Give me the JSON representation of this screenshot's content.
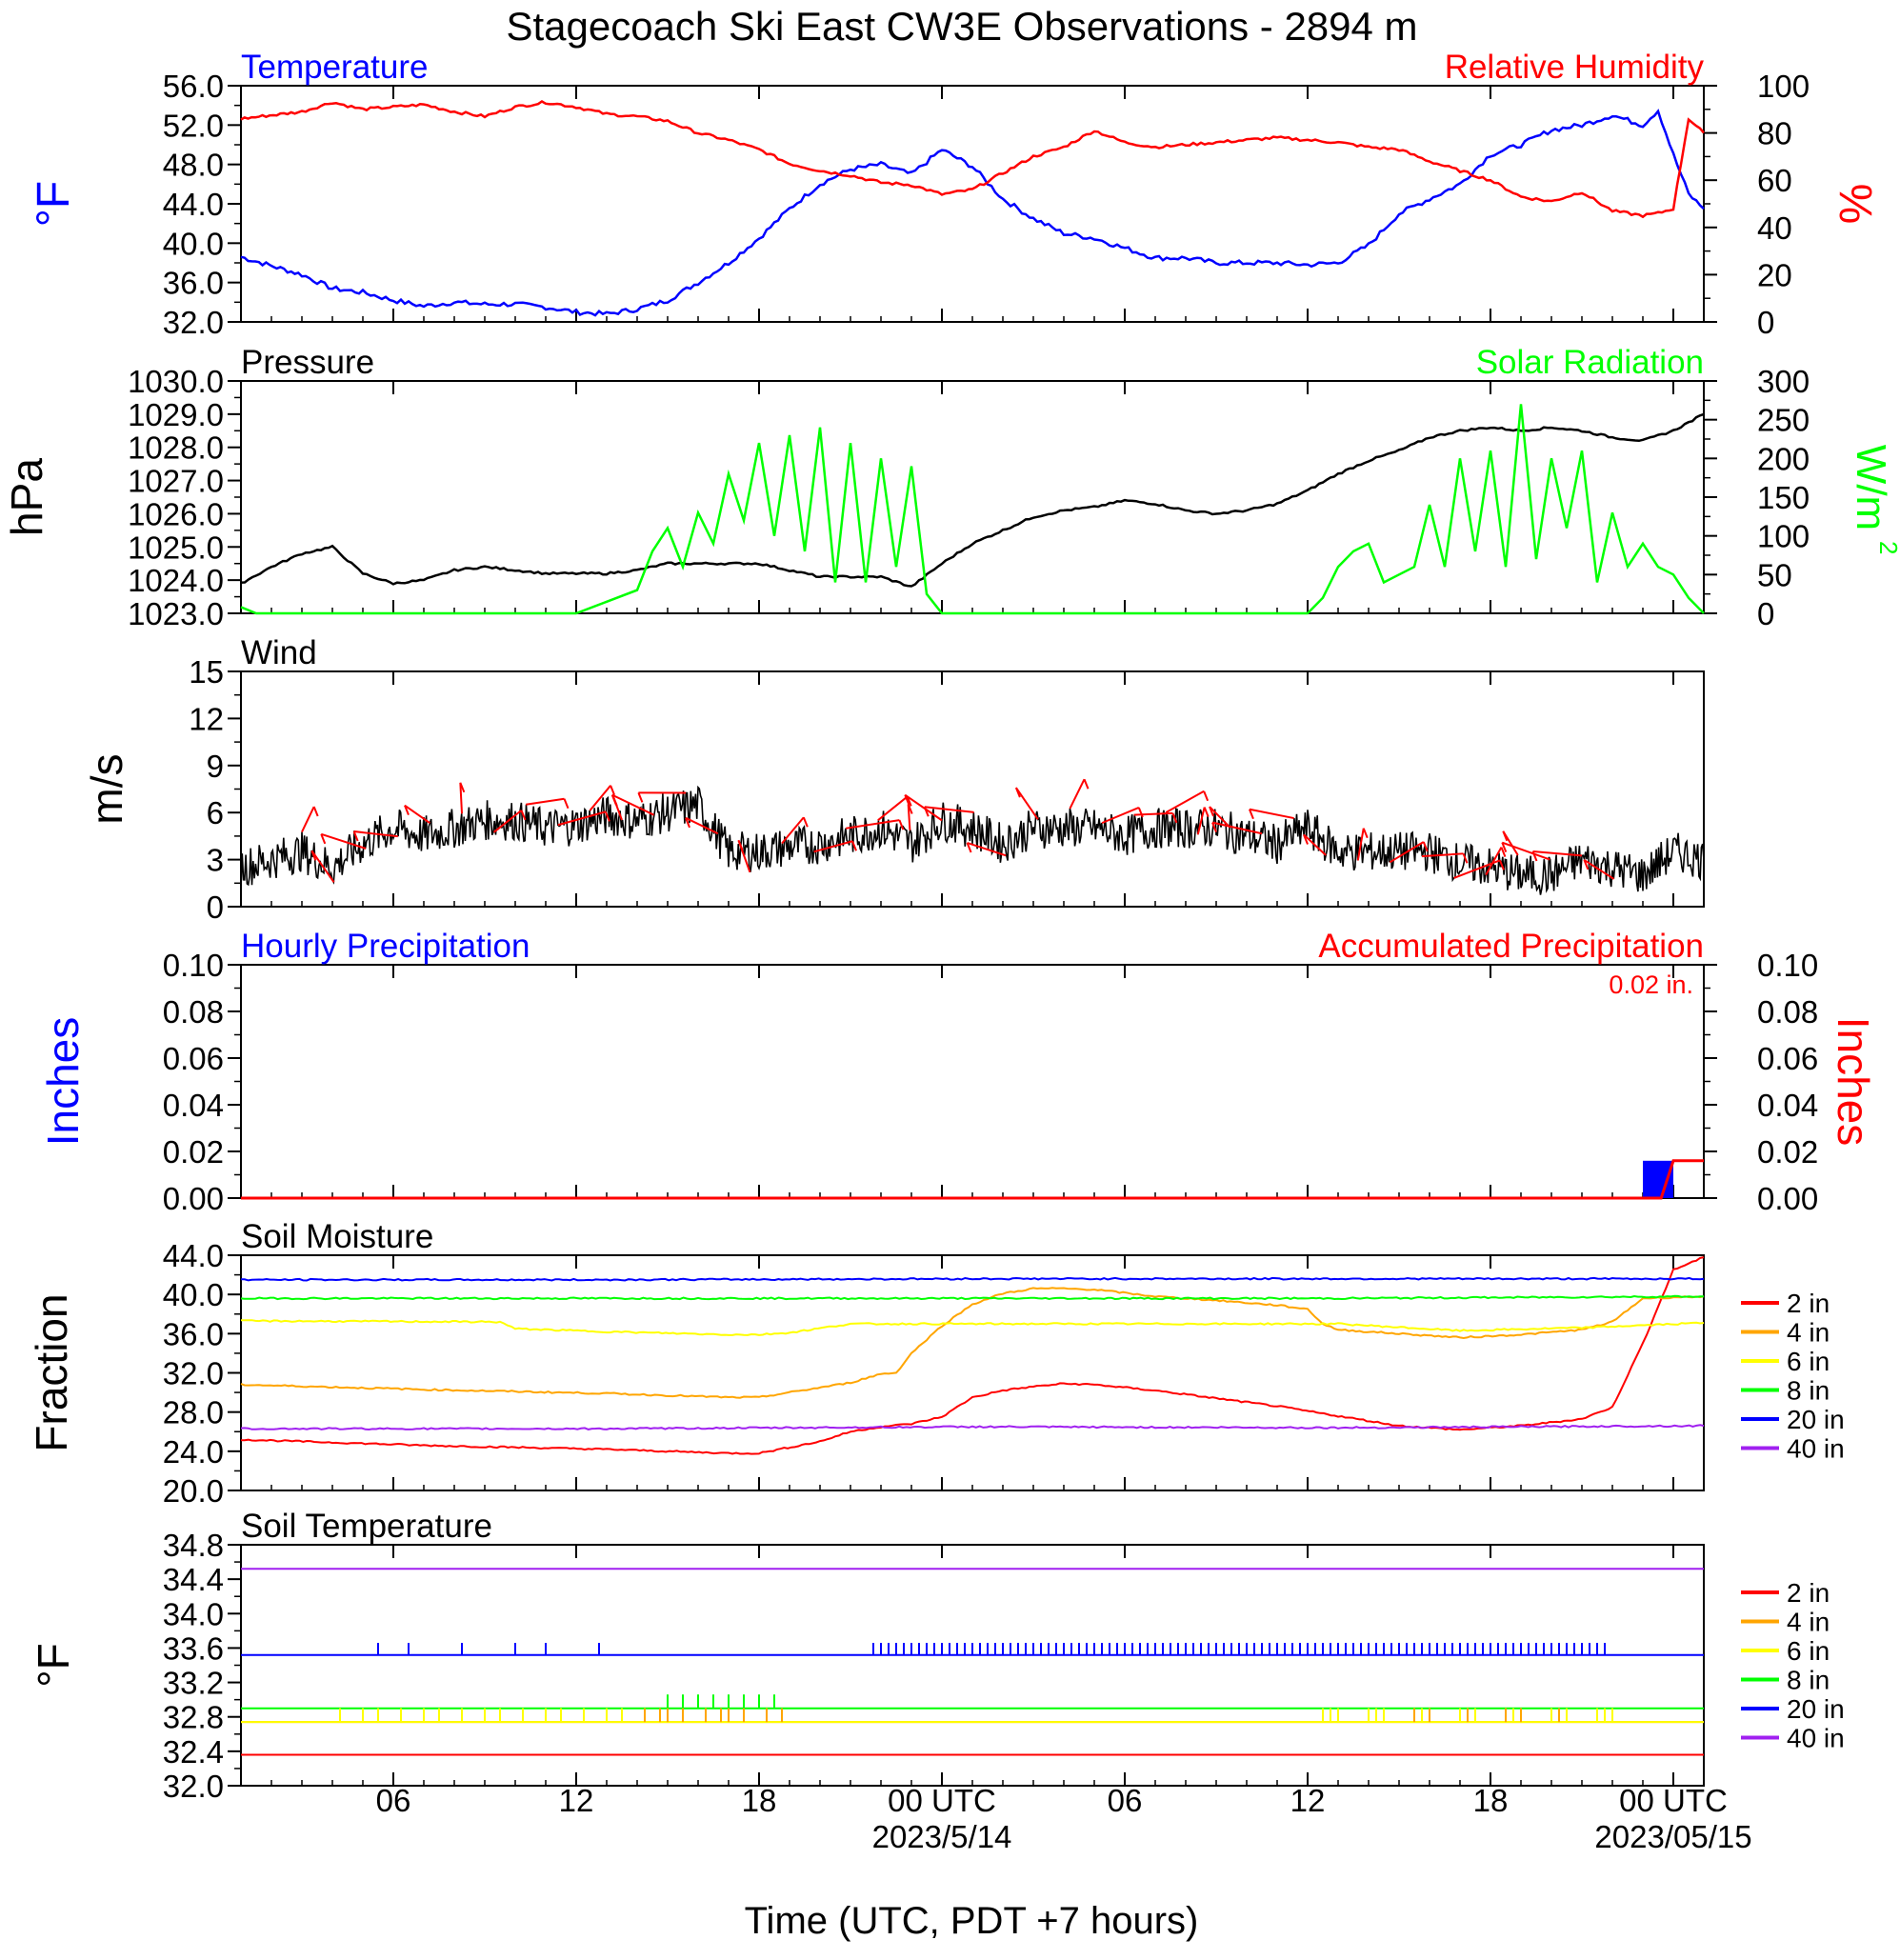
{
  "title": "Stagecoach Ski East CW3E Observations - 2894 m",
  "xlabel": "Time (UTC, PDT +7 hours)",
  "x_ticks": [
    {
      "label": "06",
      "date": ""
    },
    {
      "label": "12",
      "date": ""
    },
    {
      "label": "18",
      "date": ""
    },
    {
      "label": "00 UTC",
      "date": "2023/5/14"
    },
    {
      "label": "06",
      "date": ""
    },
    {
      "label": "12",
      "date": ""
    },
    {
      "label": "18",
      "date": ""
    },
    {
      "label": "00 UTC",
      "date": "2023/05/15"
    }
  ],
  "colors": {
    "temperature": "#0000ff",
    "humidity": "#ff0000",
    "pressure": "#000000",
    "solar": "#00ff00",
    "wind": "#000000",
    "barbs": "#ff0000",
    "hourly": "#0000ff",
    "accum": "#ff0000",
    "d2": "#ff0000",
    "d4": "#ffa500",
    "d6": "#ffff00",
    "d8": "#00ff00",
    "d20": "#0000ff",
    "d40": "#a020f0"
  },
  "chart_data": [
    {
      "type": "line",
      "panel": "temperature_humidity",
      "x_unit": "hours since 2023-05-13 01 UTC",
      "left_title": "Temperature",
      "right_title": "Relative Humidity",
      "ylabel_left": "°F",
      "ylabel_right": "%",
      "ylim_left": [
        32.0,
        56.0
      ],
      "ylim_right": [
        0,
        100
      ],
      "yticks_left": [
        "56.0",
        "52.0",
        "48.0",
        "44.0",
        "40.0",
        "36.0",
        "32.0"
      ],
      "yticks_right": [
        "100",
        "80",
        "60",
        "40",
        "20",
        "0"
      ],
      "series": [
        {
          "axis": "left",
          "color": "#0000ff",
          "x": [
            0,
            2,
            3,
            4,
            5,
            6,
            7,
            8,
            9,
            10,
            11,
            12,
            13,
            14,
            15,
            16,
            17,
            18,
            19,
            20,
            21,
            22,
            23,
            24,
            25,
            26,
            27,
            28,
            29,
            30,
            31,
            32,
            33,
            34,
            35,
            36,
            37,
            38,
            39,
            40,
            41,
            42,
            43,
            44,
            45,
            46,
            46.5,
            47,
            47.5,
            48
          ],
          "y": [
            38.6,
            36.8,
            35.4,
            35.0,
            34.2,
            33.6,
            34.0,
            33.8,
            33.8,
            33.5,
            33.0,
            32.8,
            33.3,
            34.2,
            36.0,
            38.0,
            40.5,
            43.5,
            46.0,
            47.5,
            48.0,
            47.0,
            49.5,
            47.8,
            44.5,
            42.5,
            41.0,
            40.5,
            39.5,
            38.5,
            38.5,
            38.0,
            38.0,
            38.0,
            37.8,
            38.0,
            39.8,
            43.0,
            44.5,
            46.0,
            49.0,
            50.0,
            51.5,
            52.0,
            53.0,
            52.0,
            53.5,
            49.0,
            45.0,
            43.5
          ]
        },
        {
          "axis": "right",
          "color": "#ff0000",
          "x": [
            0,
            2,
            3,
            4,
            5,
            6,
            7,
            8,
            9,
            10,
            11,
            12,
            13,
            14,
            15,
            16,
            17,
            18,
            19,
            20,
            21,
            22,
            23,
            24,
            25,
            26,
            27,
            28,
            29,
            30,
            31,
            32,
            33,
            34,
            35,
            36,
            37,
            38,
            39,
            40,
            41,
            42,
            43,
            44,
            45,
            46,
            46.5,
            47,
            47.5,
            48
          ],
          "y": [
            86,
            89,
            93,
            90,
            91,
            92,
            89,
            87,
            91,
            93,
            91,
            88,
            87,
            85,
            80,
            77,
            73,
            67,
            64,
            62,
            59,
            58,
            54,
            56,
            63,
            70,
            74,
            81,
            76,
            74,
            75,
            76,
            77,
            78,
            77,
            76,
            74,
            73,
            68,
            64,
            60,
            53,
            51,
            55,
            47,
            45,
            46,
            48,
            86,
            80
          ]
        }
      ]
    },
    {
      "type": "line",
      "panel": "pressure_solar",
      "left_title": "Pressure",
      "right_title": "Solar Radiation",
      "ylabel_left": "hPa",
      "ylabel_right": "W/m2",
      "ylim_left": [
        1023.0,
        1030.0
      ],
      "ylim_right": [
        0,
        300
      ],
      "yticks_left": [
        "1030.0",
        "1029.0",
        "1028.0",
        "1027.0",
        "1026.0",
        "1025.0",
        "1024.0",
        "1023.0"
      ],
      "yticks_right": [
        "300",
        "250",
        "200",
        "150",
        "100",
        "50",
        "0"
      ],
      "series": [
        {
          "axis": "left",
          "color": "#000000",
          "x": [
            0,
            1,
            2,
            3,
            4,
            5,
            6,
            7,
            8,
            9,
            10,
            11,
            12,
            13,
            14,
            15,
            16,
            17,
            18,
            19,
            20,
            21,
            22,
            23,
            24,
            25,
            26,
            27,
            28,
            29,
            30,
            31,
            32,
            33,
            34,
            35,
            36,
            37,
            38,
            39,
            40,
            41,
            42,
            43,
            44,
            45,
            46,
            47,
            48
          ],
          "y": [
            1023.9,
            1024.4,
            1024.8,
            1025.0,
            1024.2,
            1023.9,
            1024.0,
            1024.3,
            1024.4,
            1024.3,
            1024.2,
            1024.2,
            1024.2,
            1024.3,
            1024.5,
            1024.5,
            1024.5,
            1024.5,
            1024.3,
            1024.1,
            1024.1,
            1024.1,
            1023.8,
            1024.5,
            1025.1,
            1025.5,
            1025.9,
            1026.1,
            1026.2,
            1026.4,
            1026.3,
            1026.1,
            1026.0,
            1026.1,
            1026.3,
            1026.7,
            1027.2,
            1027.6,
            1027.9,
            1028.3,
            1028.5,
            1028.6,
            1028.5,
            1028.6,
            1028.5,
            1028.3,
            1028.2,
            1028.5,
            1029.0
          ]
        },
        {
          "axis": "right",
          "color": "#00ff00",
          "x": [
            0,
            0.5,
            1,
            10.5,
            11,
            12,
            13,
            13.5,
            14,
            14.5,
            15,
            15.5,
            16,
            16.5,
            17,
            17.5,
            18,
            18.5,
            19,
            19.5,
            20,
            20.5,
            21,
            21.5,
            22,
            22.5,
            23,
            24,
            24.5,
            25,
            26,
            35,
            35.5,
            36,
            36.5,
            37,
            37.5,
            38,
            38.5,
            39,
            39.5,
            40,
            40.5,
            41,
            41.5,
            42,
            42.5,
            43,
            43.5,
            44,
            44.5,
            45,
            45.5,
            46,
            46.5,
            47,
            47.5,
            48
          ],
          "y": [
            8,
            0,
            0,
            0,
            0,
            15,
            30,
            80,
            110,
            60,
            130,
            90,
            180,
            120,
            220,
            100,
            230,
            80,
            240,
            40,
            220,
            40,
            200,
            60,
            190,
            25,
            0,
            0,
            0,
            0,
            0,
            0,
            20,
            60,
            80,
            90,
            40,
            50,
            60,
            140,
            60,
            200,
            80,
            210,
            60,
            270,
            70,
            200,
            110,
            210,
            40,
            130,
            60,
            90,
            60,
            50,
            20,
            0
          ]
        }
      ]
    },
    {
      "type": "line",
      "panel": "wind",
      "title": "Wind",
      "ylabel": "m/s",
      "ylim": [
        0,
        15
      ],
      "yticks": [
        "15",
        "12",
        "9",
        "6",
        "3",
        "0"
      ],
      "series": [
        {
          "color": "#000000",
          "x": [
            0,
            1,
            2,
            3,
            4,
            5,
            6,
            7,
            8,
            9,
            10,
            11,
            12,
            13,
            14,
            15,
            16,
            17,
            18,
            19,
            20,
            21,
            22,
            23,
            24,
            25,
            26,
            27,
            28,
            29,
            30,
            31,
            32,
            33,
            34,
            35,
            36,
            37,
            38,
            39,
            40,
            41,
            42,
            43,
            44,
            45,
            46,
            47,
            48
          ],
          "y": [
            2.5,
            3.0,
            3.5,
            2.5,
            4.0,
            5.0,
            4.5,
            5.0,
            5.5,
            5.5,
            5.0,
            5.2,
            5.8,
            5.5,
            6.0,
            6.5,
            3.5,
            3.5,
            3.8,
            4.0,
            4.5,
            5.0,
            4.0,
            5.5,
            5.0,
            4.0,
            5.0,
            5.0,
            5.0,
            4.5,
            5.0,
            5.0,
            5.0,
            4.5,
            4.0,
            5.0,
            3.5,
            3.5,
            3.5,
            3.5,
            2.8,
            2.5,
            2.0,
            2.0,
            3.0,
            2.5,
            2.0,
            3.5,
            3.0
          ]
        }
      ]
    },
    {
      "type": "bar",
      "panel": "precipitation",
      "left_title": "Hourly Precipitation",
      "right_title": "Accumulated Precipitation",
      "accumulated_total": "0.02 in.",
      "ylabel_left": "Inches",
      "ylabel_right": "Inches",
      "ylim": [
        0.0,
        0.1
      ],
      "yticks": [
        "0.10",
        "0.08",
        "0.06",
        "0.04",
        "0.02",
        "0.00"
      ],
      "bars": [
        {
          "x": 46.5,
          "value": 0.016
        }
      ],
      "accumulated": {
        "x": [
          0,
          46.6,
          47,
          48
        ],
        "y": [
          0,
          0,
          0.016,
          0.016
        ]
      }
    },
    {
      "type": "line",
      "panel": "soil_moisture",
      "title": "Soil Moisture",
      "ylabel": "Fraction",
      "ylim": [
        20.0,
        44.0
      ],
      "yticks": [
        "44.0",
        "40.0",
        "36.0",
        "32.0",
        "28.0",
        "24.0",
        "20.0"
      ],
      "legend": [
        "2 in",
        "4 in",
        "6 in",
        "8 in",
        "20 in",
        "40 in"
      ],
      "series": [
        {
          "name": "2 in",
          "color": "#ff0000",
          "x": [
            0,
            6,
            12,
            16,
            17,
            19,
            20,
            21,
            22,
            23,
            24,
            25,
            26,
            27,
            28,
            30,
            32,
            34,
            36,
            38,
            40,
            42,
            44,
            45,
            46,
            47,
            48
          ],
          "y": [
            25.2,
            24.6,
            24.2,
            23.8,
            23.8,
            25.0,
            26.0,
            26.5,
            26.8,
            27.5,
            29.5,
            30.2,
            30.6,
            30.9,
            30.8,
            30.2,
            29.4,
            28.6,
            27.6,
            26.6,
            26.2,
            26.6,
            27.3,
            28.5,
            35.0,
            42.5,
            43.8
          ]
        },
        {
          "name": "4 in",
          "color": "#ffa500",
          "x": [
            0,
            6,
            12,
            16,
            17,
            20,
            21,
            21.5,
            22,
            23,
            24,
            25,
            26,
            27,
            28,
            30,
            32,
            34,
            35,
            35.5,
            36,
            38,
            40,
            42,
            44,
            45,
            46,
            47,
            48
          ],
          "y": [
            30.8,
            30.3,
            29.9,
            29.5,
            29.5,
            31.0,
            31.9,
            32.0,
            34.0,
            36.8,
            39.0,
            40.1,
            40.6,
            40.6,
            40.5,
            39.8,
            39.4,
            38.9,
            38.5,
            37.0,
            36.4,
            36.0,
            35.6,
            35.9,
            36.4,
            37.2,
            39.6,
            39.7,
            39.8
          ]
        },
        {
          "name": "6 in",
          "color": "#ffff00",
          "x": [
            0,
            8.5,
            9,
            12,
            16,
            17,
            18,
            20,
            24,
            28,
            32,
            36,
            40,
            44,
            48
          ],
          "y": [
            37.3,
            37.2,
            36.5,
            36.2,
            35.9,
            35.9,
            36.1,
            37.0,
            37.0,
            37.0,
            37.0,
            37.0,
            36.3,
            36.6,
            37.1
          ]
        },
        {
          "name": "8 in",
          "color": "#00ff00",
          "x": [
            0,
            12,
            24,
            36,
            48
          ],
          "y": [
            39.6,
            39.6,
            39.6,
            39.6,
            39.8
          ]
        },
        {
          "name": "20 in",
          "color": "#0000ff",
          "x": [
            0,
            12,
            24,
            36,
            48
          ],
          "y": [
            41.5,
            41.5,
            41.6,
            41.6,
            41.6
          ]
        },
        {
          "name": "40 in",
          "color": "#a020f0",
          "x": [
            0,
            12,
            24,
            36,
            48
          ],
          "y": [
            26.3,
            26.3,
            26.5,
            26.4,
            26.6
          ]
        }
      ]
    },
    {
      "type": "line",
      "panel": "soil_temperature",
      "title": "Soil Temperature",
      "ylabel": "°F",
      "ylim": [
        32.0,
        34.8
      ],
      "yticks": [
        "34.8",
        "34.4",
        "34.0",
        "33.6",
        "33.2",
        "32.8",
        "32.4",
        "32.0"
      ],
      "legend": [
        "2 in",
        "4 in",
        "6 in",
        "8 in",
        "20 in",
        "40 in"
      ],
      "series": [
        {
          "name": "2 in",
          "color": "#ff0000",
          "x": [
            0,
            48
          ],
          "y": [
            32.36,
            32.36
          ]
        },
        {
          "name": "4 in",
          "color": "#ffa500",
          "x": [
            0,
            48
          ],
          "y": [
            32.74,
            32.74
          ]
        },
        {
          "name": "6 in",
          "color": "#ffff00",
          "x": [
            0,
            48
          ],
          "y": [
            32.74,
            32.74
          ]
        },
        {
          "name": "8 in",
          "color": "#00ff00",
          "x": [
            0,
            48
          ],
          "y": [
            32.9,
            32.9
          ]
        },
        {
          "name": "20 in",
          "color": "#0000ff",
          "x": [
            0,
            48
          ],
          "y": [
            33.52,
            33.52
          ]
        },
        {
          "name": "40 in",
          "color": "#a020f0",
          "x": [
            0,
            48
          ],
          "y": [
            34.52,
            34.52
          ]
        }
      ]
    }
  ]
}
